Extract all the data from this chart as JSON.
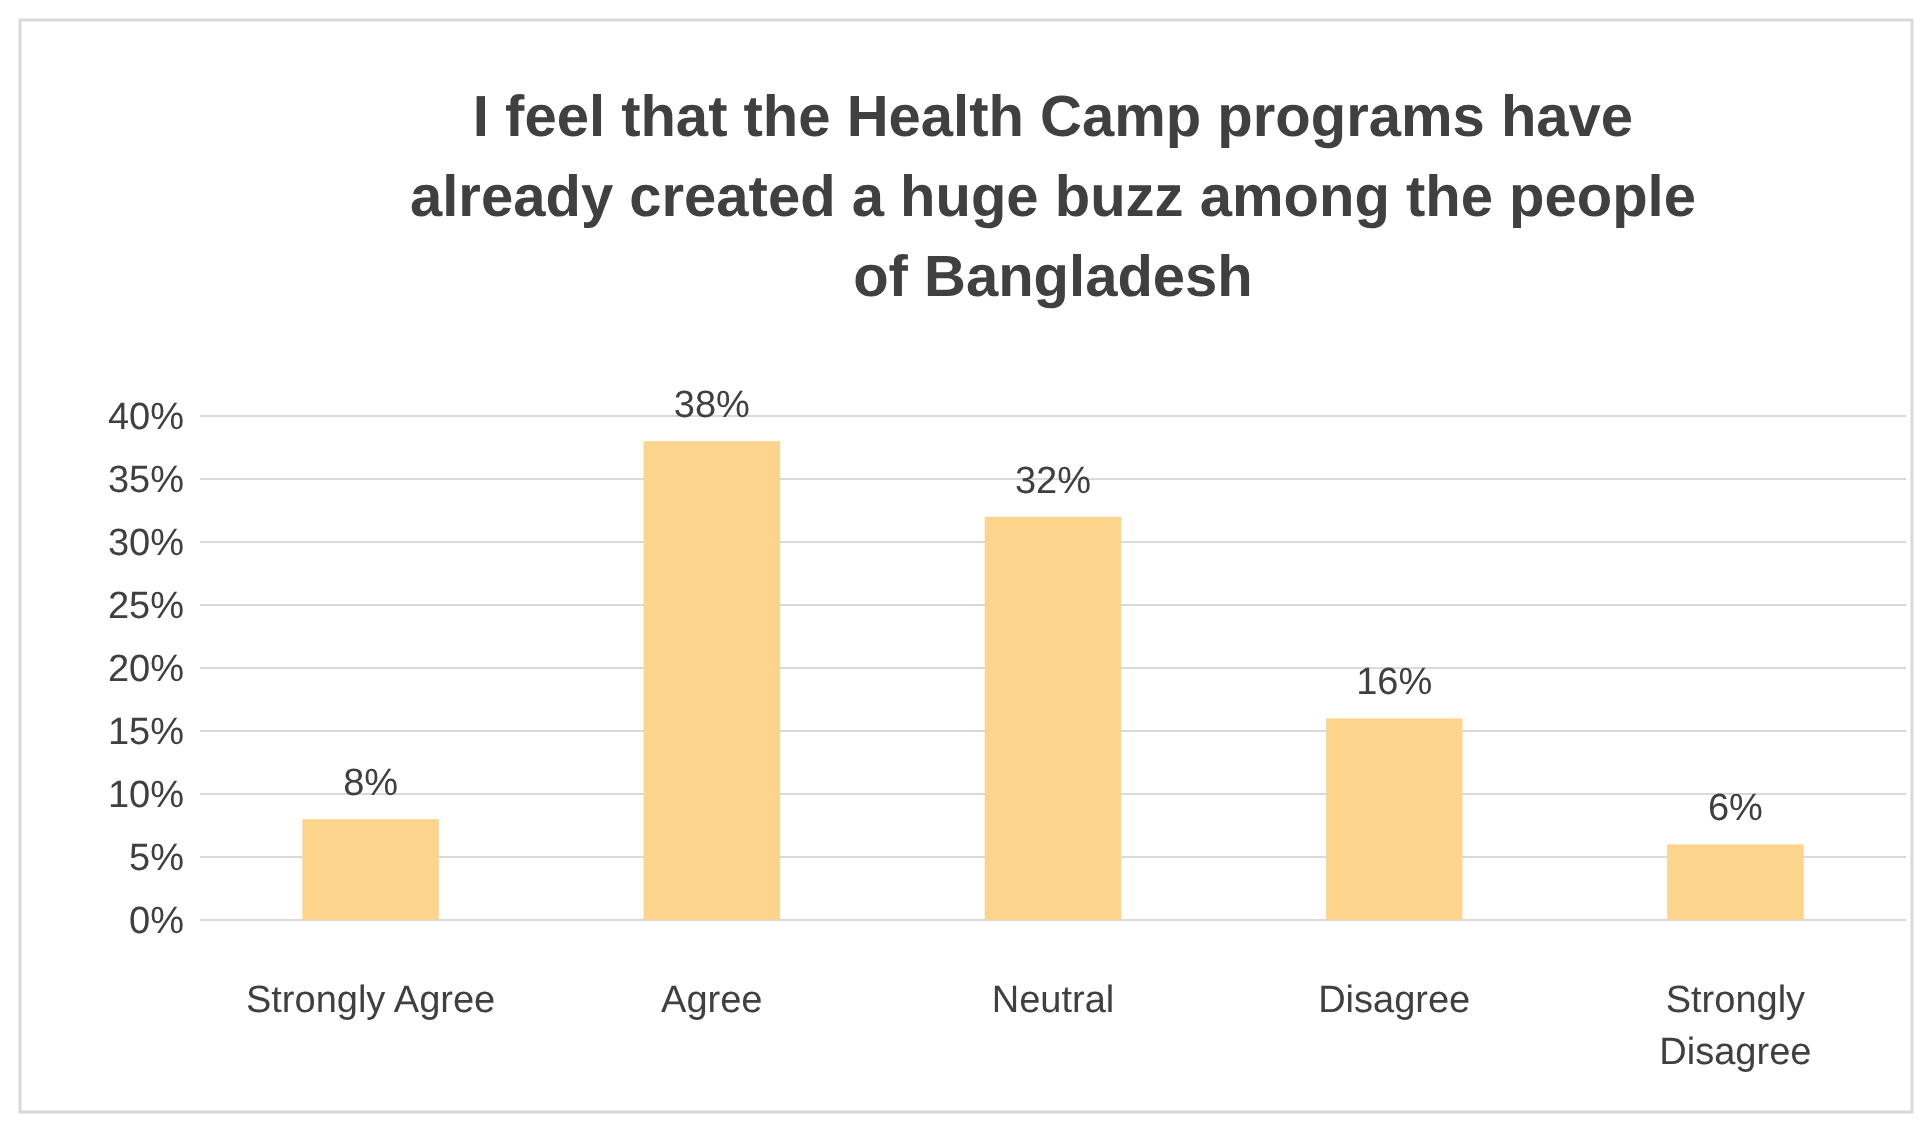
{
  "chart_data": {
    "type": "bar",
    "title": "I feel that the Health Camp programs have already created a huge buzz among the people of Bangladesh",
    "categories": [
      "Strongly Agree",
      "Agree",
      "Neutral",
      "Disagree",
      "Strongly Disagree"
    ],
    "values": [
      8,
      38,
      32,
      16,
      6
    ],
    "color": "#fcd48c",
    "value_labels": [
      "8%",
      "38%",
      "32%",
      "16%",
      "6%"
    ],
    "ylim": [
      0,
      40
    ],
    "yticks": [
      {
        "value": 0,
        "label": "0%"
      },
      {
        "value": 5,
        "label": "5%"
      },
      {
        "value": 10,
        "label": "10%"
      },
      {
        "value": 15,
        "label": "15%"
      },
      {
        "value": 20,
        "label": "20%"
      },
      {
        "value": 25,
        "label": "25%"
      },
      {
        "value": 30,
        "label": "30%"
      },
      {
        "value": 35,
        "label": "35%"
      },
      {
        "value": 40,
        "label": "40%"
      }
    ],
    "grid": "y"
  }
}
